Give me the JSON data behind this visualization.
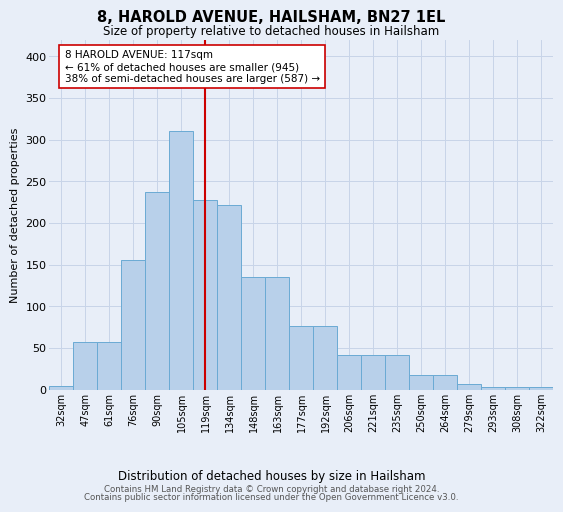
{
  "title": "8, HAROLD AVENUE, HAILSHAM, BN27 1EL",
  "subtitle": "Size of property relative to detached houses in Hailsham",
  "xlabel_bottom": "Distribution of detached houses by size in Hailsham",
  "ylabel": "Number of detached properties",
  "footer_line1": "Contains HM Land Registry data © Crown copyright and database right 2024.",
  "footer_line2": "Contains public sector information licensed under the Open Government Licence v3.0.",
  "categories": [
    "32sqm",
    "47sqm",
    "61sqm",
    "76sqm",
    "90sqm",
    "105sqm",
    "119sqm",
    "134sqm",
    "148sqm",
    "163sqm",
    "177sqm",
    "192sqm",
    "206sqm",
    "221sqm",
    "235sqm",
    "250sqm",
    "264sqm",
    "279sqm",
    "293sqm",
    "308sqm",
    "322sqm"
  ],
  "bar_heights": [
    4,
    57,
    57,
    155,
    237,
    310,
    228,
    222,
    135,
    135,
    76,
    76,
    42,
    42,
    42,
    17,
    17,
    7,
    3,
    3,
    3
  ],
  "bar_color": "#b8d0ea",
  "bar_edge_color": "#6aaad4",
  "grid_color": "#c8d4e8",
  "background_color": "#e8eef8",
  "vline_x_index": 6,
  "vline_color": "#cc0000",
  "annotation_line1": "8 HAROLD AVENUE: 117sqm",
  "annotation_line2": "← 61% of detached houses are smaller (945)",
  "annotation_line3": "38% of semi-detached houses are larger (587) →",
  "annotation_box_facecolor": "#ffffff",
  "annotation_box_edgecolor": "#cc0000",
  "ylim": [
    0,
    420
  ],
  "yticks": [
    0,
    50,
    100,
    150,
    200,
    250,
    300,
    350,
    400
  ]
}
